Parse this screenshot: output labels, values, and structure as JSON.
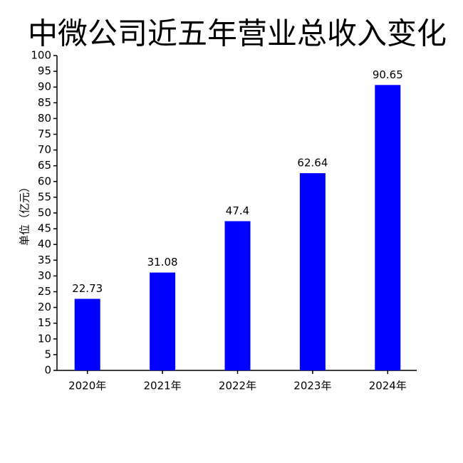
{
  "chart_data": {
    "type": "bar",
    "title": "中微公司近五年营业总收入变化",
    "y_label": "单位（亿元）",
    "categories": [
      "2020年",
      "2021年",
      "2022年",
      "2023年",
      "2024年"
    ],
    "values": [
      22.73,
      31.08,
      47.4,
      62.64,
      90.65
    ],
    "color": "#0000ff",
    "ylim": [
      0,
      100
    ],
    "yticks": [
      0,
      5,
      10,
      15,
      20,
      25,
      30,
      35,
      40,
      45,
      50,
      55,
      60,
      65,
      70,
      75,
      80,
      85,
      90,
      95,
      100
    ]
  }
}
